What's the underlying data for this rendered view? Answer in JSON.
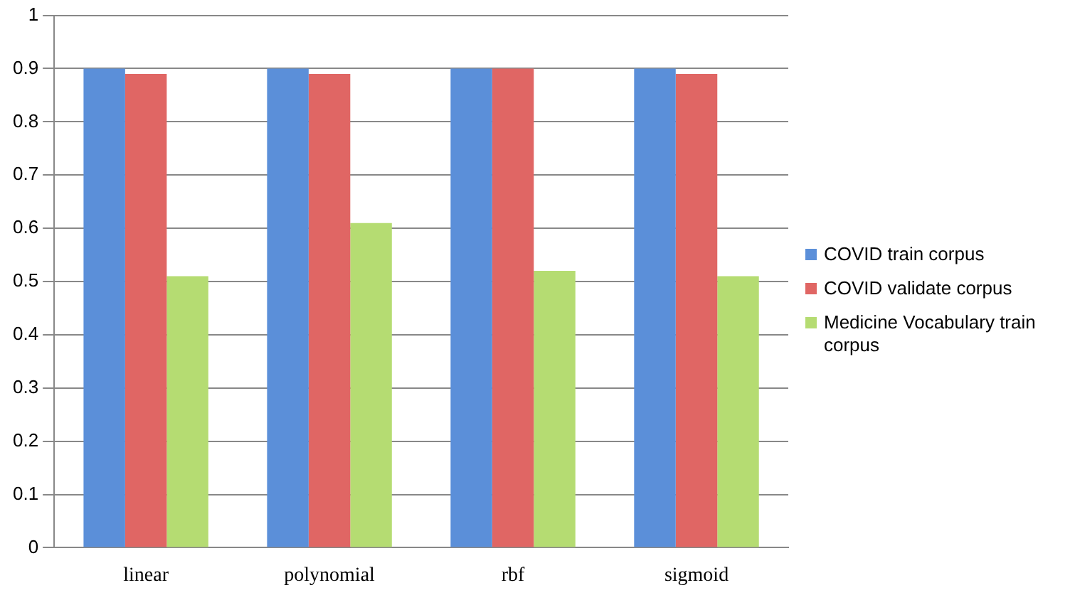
{
  "chart_data": {
    "type": "bar",
    "categories": [
      "linear",
      "polynomial",
      "rbf",
      "sigmoid"
    ],
    "series": [
      {
        "name": "COVID train corpus",
        "color": "#5b8fd9",
        "values": [
          0.9,
          0.9,
          0.9,
          0.9
        ]
      },
      {
        "name": "COVID validate corpus",
        "color": "#e06664",
        "values": [
          0.89,
          0.89,
          0.9,
          0.89
        ]
      },
      {
        "name": "Medicine Vocabulary train corpus",
        "color": "#b5dc72",
        "values": [
          0.51,
          0.61,
          0.52,
          0.51
        ]
      }
    ],
    "ylim": [
      0,
      1
    ],
    "yticks": [
      0,
      0.1,
      0.2,
      0.3,
      0.4,
      0.5,
      0.6,
      0.7,
      0.8,
      0.9,
      1
    ],
    "grid": "y",
    "legend": "right"
  }
}
